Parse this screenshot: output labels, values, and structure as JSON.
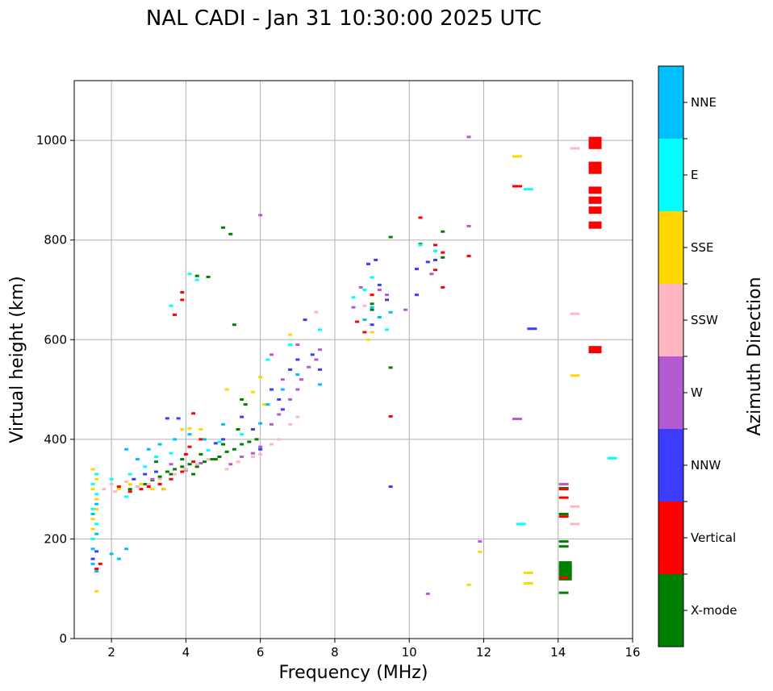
{
  "chart_data": {
    "type": "scatter",
    "title": "NAL CADI - Jan 31 10:30:00 2025 UTC",
    "xlabel": "Frequency (MHz)",
    "ylabel": "Virtual height (km)",
    "xlim": [
      1,
      16
    ],
    "ylim": [
      0,
      1120
    ],
    "xticks": [
      2,
      4,
      6,
      8,
      10,
      12,
      14,
      16
    ],
    "yticks": [
      0,
      200,
      400,
      600,
      800,
      1000
    ],
    "grid": true,
    "colorbar": {
      "label": "Azimuth Direction",
      "categories": [
        {
          "name": "X-mode",
          "color": "#008000"
        },
        {
          "name": "Vertical",
          "color": "#ff0000"
        },
        {
          "name": "NNW",
          "color": "#3c3cff"
        },
        {
          "name": "W",
          "color": "#b45ad2"
        },
        {
          "name": "SSW",
          "color": "#ffb6c1"
        },
        {
          "name": "SSE",
          "color": "#ffd700"
        },
        {
          "name": "E",
          "color": "#00ffff"
        },
        {
          "name": "NNE",
          "color": "#00bfff"
        }
      ]
    },
    "series": [
      {
        "name": "X-mode",
        "points": [
          [
            2.5,
            300
          ],
          [
            2.7,
            305
          ],
          [
            2.9,
            310
          ],
          [
            3.1,
            318
          ],
          [
            3.3,
            325
          ],
          [
            3.5,
            335
          ],
          [
            3.7,
            340
          ],
          [
            3.9,
            345
          ],
          [
            4.1,
            350
          ],
          [
            4.3,
            345
          ],
          [
            4.5,
            355
          ],
          [
            4.7,
            360
          ],
          [
            4.9,
            365
          ],
          [
            5.1,
            375
          ],
          [
            5.3,
            380
          ],
          [
            5.5,
            390
          ],
          [
            5.7,
            395
          ],
          [
            5.9,
            400
          ],
          [
            3.2,
            355
          ],
          [
            3.6,
            330
          ],
          [
            4.0,
            340
          ],
          [
            4.4,
            370
          ],
          [
            4.8,
            360
          ],
          [
            5.0,
            390
          ],
          [
            5.4,
            420
          ],
          [
            5.6,
            470
          ],
          [
            5.0,
            825
          ],
          [
            5.2,
            812
          ],
          [
            4.3,
            728
          ],
          [
            4.6,
            726
          ],
          [
            5.3,
            630
          ],
          [
            5.5,
            480
          ],
          [
            9.5,
            806
          ],
          [
            9.5,
            544
          ],
          [
            10.3,
            792
          ],
          [
            10.9,
            817
          ],
          [
            10.9,
            765
          ],
          [
            9.0,
            672
          ],
          [
            9.0,
            660
          ],
          [
            14.15,
            148
          ],
          [
            14.15,
            140
          ],
          [
            14.15,
            132
          ],
          [
            14.15,
            124
          ],
          [
            14.15,
            195
          ],
          [
            14.15,
            185
          ],
          [
            14.15,
            92
          ],
          [
            14.15,
            302
          ],
          [
            14.15,
            250
          ],
          [
            3.9,
            360
          ],
          [
            4.2,
            330
          ]
        ]
      },
      {
        "name": "Vertical",
        "points": [
          [
            1.6,
            140
          ],
          [
            1.7,
            150
          ],
          [
            2.5,
            295
          ],
          [
            2.8,
            300
          ],
          [
            3.0,
            305
          ],
          [
            3.3,
            310
          ],
          [
            3.6,
            320
          ],
          [
            3.9,
            335
          ],
          [
            4.2,
            355
          ],
          [
            3.7,
            650
          ],
          [
            3.9,
            695
          ],
          [
            3.9,
            680
          ],
          [
            4.2,
            452
          ],
          [
            4.1,
            385
          ],
          [
            4.4,
            400
          ],
          [
            4.0,
            370
          ],
          [
            8.6,
            636
          ],
          [
            8.8,
            615
          ],
          [
            9.0,
            690
          ],
          [
            9.5,
            446
          ],
          [
            10.3,
            845
          ],
          [
            10.7,
            790
          ],
          [
            10.9,
            775
          ],
          [
            10.7,
            740
          ],
          [
            10.9,
            705
          ],
          [
            11.6,
            768
          ],
          [
            12.9,
            908
          ],
          [
            14.15,
            283
          ],
          [
            14.15,
            300
          ],
          [
            14.15,
            245
          ],
          [
            14.15,
            122
          ],
          [
            14.95,
            1000
          ],
          [
            14.95,
            990
          ],
          [
            14.95,
            950
          ],
          [
            14.95,
            940
          ],
          [
            14.95,
            900
          ],
          [
            14.95,
            880
          ],
          [
            14.95,
            860
          ],
          [
            14.95,
            830
          ],
          [
            14.95,
            580
          ],
          [
            3.4,
            300
          ],
          [
            2.2,
            305
          ]
        ]
      },
      {
        "name": "NNW",
        "points": [
          [
            1.5,
            160
          ],
          [
            1.6,
            175
          ],
          [
            2.6,
            320
          ],
          [
            2.9,
            330
          ],
          [
            3.2,
            335
          ],
          [
            3.5,
            442
          ],
          [
            3.8,
            442
          ],
          [
            4.8,
            392
          ],
          [
            5.0,
            400
          ],
          [
            5.8,
            420
          ],
          [
            6.3,
            500
          ],
          [
            6.5,
            480
          ],
          [
            6.8,
            540
          ],
          [
            7.0,
            560
          ],
          [
            7.2,
            640
          ],
          [
            7.4,
            570
          ],
          [
            7.6,
            540
          ],
          [
            6.6,
            460
          ],
          [
            8.9,
            752
          ],
          [
            9.1,
            760
          ],
          [
            9.2,
            710
          ],
          [
            9.0,
            630
          ],
          [
            9.4,
            680
          ],
          [
            9.5,
            305
          ],
          [
            10.2,
            742
          ],
          [
            10.2,
            690
          ],
          [
            10.5,
            756
          ],
          [
            10.7,
            760
          ],
          [
            13.3,
            622
          ],
          [
            6.0,
            380
          ],
          [
            5.5,
            445
          ]
        ]
      },
      {
        "name": "W",
        "points": [
          [
            2.8,
            310
          ],
          [
            3.1,
            320
          ],
          [
            3.6,
            350
          ],
          [
            4.0,
            338
          ],
          [
            4.4,
            352
          ],
          [
            5.2,
            350
          ],
          [
            5.5,
            365
          ],
          [
            5.8,
            372
          ],
          [
            6.0,
            385
          ],
          [
            6.3,
            430
          ],
          [
            6.5,
            450
          ],
          [
            6.6,
            520
          ],
          [
            6.8,
            480
          ],
          [
            7.0,
            500
          ],
          [
            7.1,
            520
          ],
          [
            7.3,
            545
          ],
          [
            7.5,
            560
          ],
          [
            7.6,
            580
          ],
          [
            6.0,
            850
          ],
          [
            8.5,
            665
          ],
          [
            8.7,
            705
          ],
          [
            9.2,
            700
          ],
          [
            9.4,
            690
          ],
          [
            9.9,
            660
          ],
          [
            10.6,
            732
          ],
          [
            10.5,
            90
          ],
          [
            11.6,
            1007
          ],
          [
            11.6,
            828
          ],
          [
            11.9,
            195
          ],
          [
            12.9,
            441
          ],
          [
            14.15,
            310
          ],
          [
            6.3,
            570
          ],
          [
            7.0,
            590
          ]
        ]
      },
      {
        "name": "SSW",
        "points": [
          [
            1.8,
            300
          ],
          [
            2.0,
            310
          ],
          [
            2.4,
            315
          ],
          [
            2.7,
            305
          ],
          [
            3.0,
            310
          ],
          [
            3.3,
            320
          ],
          [
            3.7,
            330
          ],
          [
            4.0,
            340
          ],
          [
            4.3,
            350
          ],
          [
            4.6,
            360
          ],
          [
            5.1,
            340
          ],
          [
            5.4,
            355
          ],
          [
            5.8,
            365
          ],
          [
            6.0,
            370
          ],
          [
            6.3,
            390
          ],
          [
            6.5,
            400
          ],
          [
            6.8,
            430
          ],
          [
            7.0,
            445
          ],
          [
            7.5,
            655
          ],
          [
            8.8,
            668
          ],
          [
            14.45,
            984
          ],
          [
            14.45,
            652
          ],
          [
            14.45,
            265
          ],
          [
            14.45,
            230
          ],
          [
            2.1,
            295
          ]
        ]
      },
      {
        "name": "SSE",
        "points": [
          [
            1.5,
            220
          ],
          [
            1.5,
            240
          ],
          [
            1.6,
            260
          ],
          [
            1.6,
            280
          ],
          [
            1.5,
            300
          ],
          [
            1.6,
            320
          ],
          [
            1.5,
            340
          ],
          [
            1.6,
            95
          ],
          [
            2.2,
            300
          ],
          [
            2.5,
            310
          ],
          [
            2.8,
            310
          ],
          [
            3.1,
            300
          ],
          [
            3.4,
            300
          ],
          [
            4.1,
            422
          ],
          [
            4.4,
            420
          ],
          [
            5.1,
            500
          ],
          [
            5.8,
            495
          ],
          [
            6.0,
            525
          ],
          [
            6.1,
            470
          ],
          [
            6.8,
            610
          ],
          [
            8.9,
            600
          ],
          [
            9.0,
            615
          ],
          [
            11.9,
            174
          ],
          [
            11.6,
            108
          ],
          [
            12.9,
            968
          ],
          [
            13.2,
            132
          ],
          [
            13.2,
            111
          ],
          [
            14.45,
            528
          ],
          [
            3.9,
            420
          ]
        ]
      },
      {
        "name": "E",
        "points": [
          [
            1.5,
            200
          ],
          [
            1.6,
            230
          ],
          [
            1.5,
            260
          ],
          [
            1.6,
            290
          ],
          [
            1.5,
            310
          ],
          [
            1.6,
            330
          ],
          [
            2.0,
            320
          ],
          [
            2.5,
            330
          ],
          [
            2.9,
            345
          ],
          [
            3.2,
            365
          ],
          [
            3.6,
            372
          ],
          [
            4.1,
            732
          ],
          [
            4.3,
            720
          ],
          [
            3.6,
            668
          ],
          [
            4.6,
            378
          ],
          [
            4.9,
            395
          ],
          [
            5.5,
            410
          ],
          [
            6.2,
            560
          ],
          [
            6.8,
            590
          ],
          [
            7.6,
            620
          ],
          [
            8.5,
            685
          ],
          [
            8.8,
            700
          ],
          [
            9.0,
            725
          ],
          [
            9.2,
            645
          ],
          [
            9.4,
            620
          ],
          [
            10.3,
            790
          ],
          [
            10.7,
            778
          ],
          [
            13.2,
            902
          ],
          [
            13.0,
            230
          ],
          [
            15.45,
            362
          ],
          [
            2.4,
            285
          ]
        ]
      },
      {
        "name": "NNE",
        "points": [
          [
            1.5,
            180
          ],
          [
            1.6,
            210
          ],
          [
            1.5,
            250
          ],
          [
            1.6,
            270
          ],
          [
            1.5,
            150
          ],
          [
            1.6,
            135
          ],
          [
            2.0,
            170
          ],
          [
            2.4,
            180
          ],
          [
            2.4,
            380
          ],
          [
            2.7,
            360
          ],
          [
            3.0,
            380
          ],
          [
            3.3,
            390
          ],
          [
            3.7,
            400
          ],
          [
            4.1,
            410
          ],
          [
            4.5,
            400
          ],
          [
            5.0,
            430
          ],
          [
            6.0,
            432
          ],
          [
            6.2,
            470
          ],
          [
            6.6,
            500
          ],
          [
            7.0,
            530
          ],
          [
            7.6,
            510
          ],
          [
            8.8,
            640
          ],
          [
            9.0,
            665
          ],
          [
            9.2,
            645
          ],
          [
            9.5,
            655
          ],
          [
            2.2,
            160
          ]
        ]
      }
    ]
  }
}
